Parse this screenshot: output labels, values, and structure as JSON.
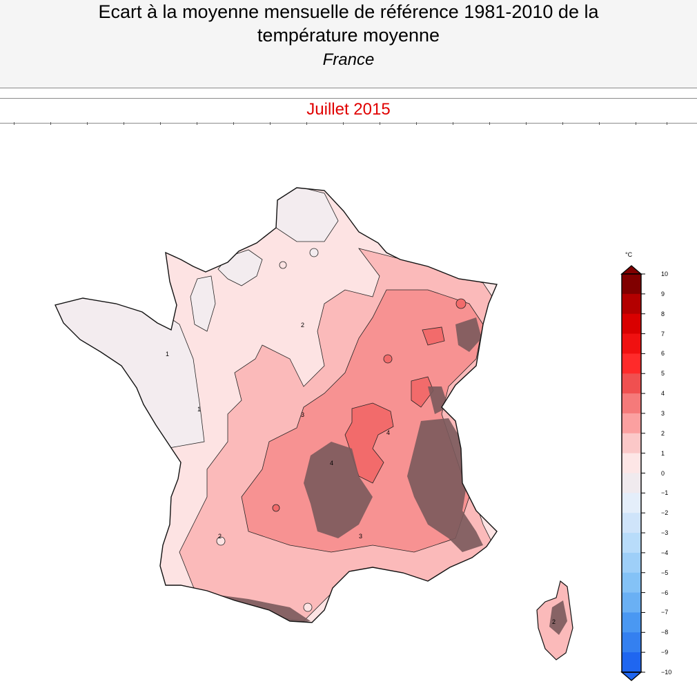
{
  "header": {
    "title_line1": "Ecart à la moyenne mensuelle de référence 1981-2010 de la",
    "title_line2": "température moyenne",
    "subtitle": "France"
  },
  "period": "Juillet 2015",
  "legend": {
    "unit": "°C",
    "labels": [
      "10",
      "9",
      "8",
      "7",
      "6",
      "5",
      "4",
      "3",
      "2",
      "1",
      "0",
      "−1",
      "−2",
      "−3",
      "−4",
      "−5",
      "−6",
      "−7",
      "−8",
      "−9",
      "−10"
    ],
    "colors": [
      "#800000",
      "#b30000",
      "#d90000",
      "#f01010",
      "#ff2a2a",
      "#f05050",
      "#f57a7a",
      "#fba0a0",
      "#fbc8c8",
      "#fde6e6",
      "#f0eaee",
      "#e4eefa",
      "#cfe4fa",
      "#b8dcfa",
      "#9ecff8",
      "#84c2f6",
      "#6ab0f4",
      "#4a98f2",
      "#3480f0",
      "#1f66f0"
    ]
  },
  "map": {
    "contour_labels": [
      "1",
      "2",
      "3",
      "4",
      "2",
      "1",
      "3",
      "4",
      "2"
    ],
    "colors": {
      "anomaly_0_1": "#f3ecef",
      "anomaly_1_2": "#fde3e3",
      "anomaly_2_3": "#fbbaba",
      "anomaly_3_4": "#f79292",
      "anomaly_4_5": "#f26b6b",
      "relief": "#7a5a5c"
    }
  }
}
